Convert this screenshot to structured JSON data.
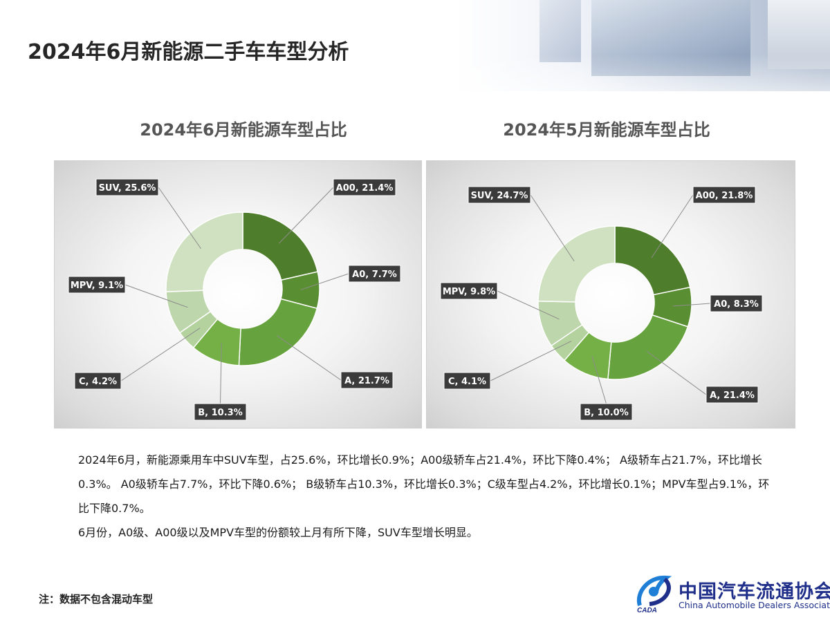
{
  "page": {
    "title": "2024年6月新能源二手车车型分析",
    "note": "注：数据不包含混动车型"
  },
  "colors": {
    "A00": "#4e7d2b",
    "A0": "#5a8e33",
    "A": "#66a23d",
    "B": "#74b046",
    "C": "#b4d29e",
    "MPV": "#bdd6ab",
    "SUV": "#cfe1c0"
  },
  "chart_data": [
    {
      "type": "pie",
      "title": "2024年6月新能源车型占比",
      "categories": [
        "A00",
        "A0",
        "A",
        "B",
        "C",
        "MPV",
        "SUV"
      ],
      "values": [
        21.4,
        7.7,
        21.7,
        10.3,
        4.2,
        9.1,
        25.6
      ],
      "labels": [
        "A00, 21.4%",
        "A0, 7.7%",
        "A, 21.7%",
        "B, 10.3%",
        "C, 4.2%",
        "MPV, 9.1%",
        "SUV, 25.6%"
      ],
      "donut": true
    },
    {
      "type": "pie",
      "title": "2024年5月新能源车型占比",
      "categories": [
        "A00",
        "A0",
        "A",
        "B",
        "C",
        "MPV",
        "SUV"
      ],
      "values": [
        21.8,
        8.3,
        21.4,
        10.0,
        4.1,
        9.8,
        24.7
      ],
      "labels": [
        "A00, 21.8%",
        "A0, 8.3%",
        "A, 21.4%",
        "B, 10.0%",
        "C, 4.1%",
        "MPV, 9.8%",
        "SUV, 24.7%"
      ],
      "donut": true
    }
  ],
  "body": {
    "paragraph1": "2024年6月，新能源乘用车中SUV车型，占25.6%，环比增长0.9%；A00级轿车占21.4%，环比下降0.4%；  A级轿车占21.7%，环比增长0.3%。  A0级轿车占7.7%，环比下降0.6%；  B级轿车占10.3%，环比增长0.3%；C级车型占4.2%，环比增长0.1%；MPV车型占9.1%，环比下降0.7%。",
    "paragraph2": "6月份，A0级、A00级以及MPV车型的份额较上月有所下降，SUV车型增长明显。"
  },
  "logo": {
    "cn": "中国汽车流通协会",
    "en": "China Automobile Dealers Association",
    "mark_text": "CADA"
  }
}
